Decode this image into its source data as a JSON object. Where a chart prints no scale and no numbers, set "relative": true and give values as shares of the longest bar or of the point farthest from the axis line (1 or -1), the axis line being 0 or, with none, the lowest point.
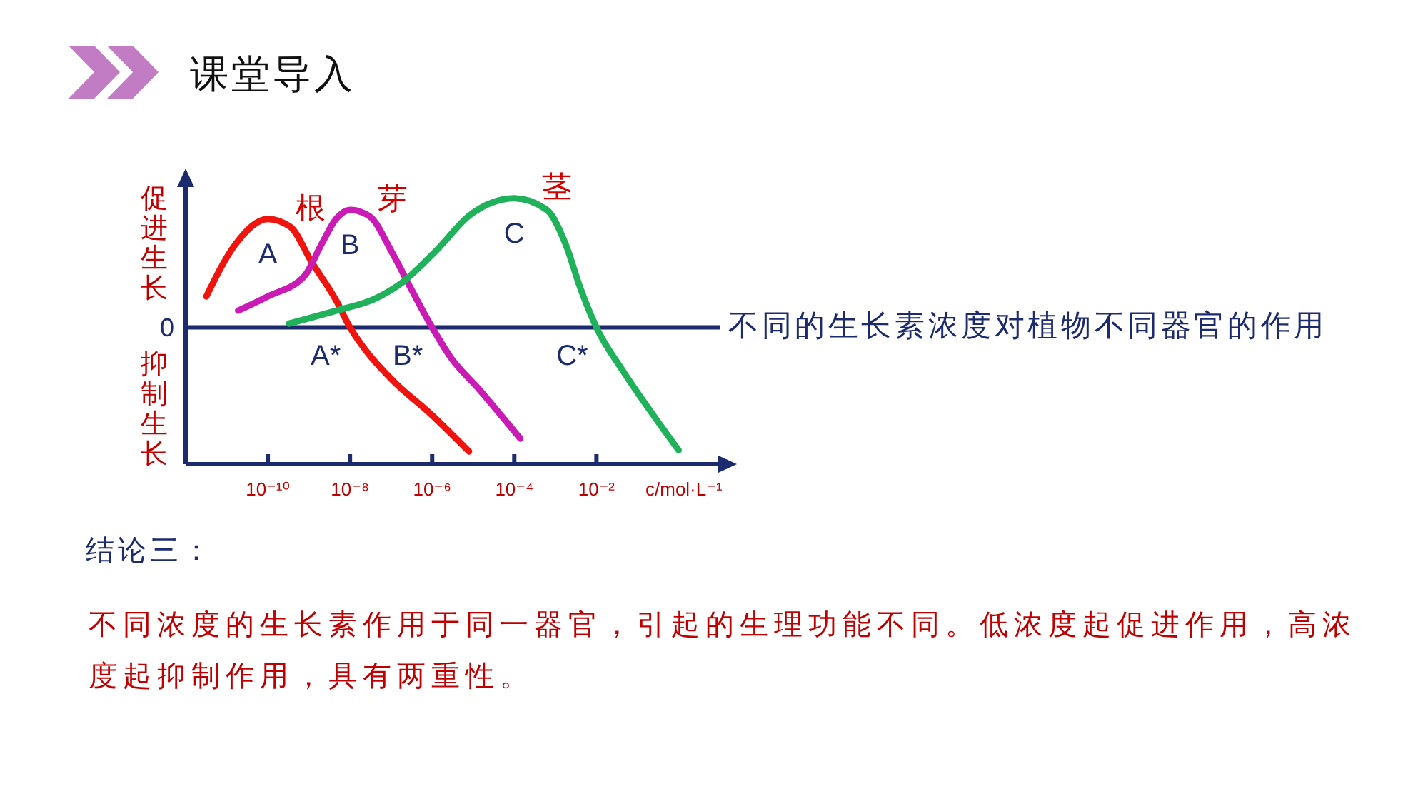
{
  "chart_data": {
    "type": "line",
    "title": "课堂导入",
    "subtitle": "不同的生长素浓度对植物不同器官的作用",
    "xlabel": "c/mol·L⁻¹",
    "log": "x",
    "relative": true,
    "xlim": [
      1e-12,
      10
    ],
    "xticks": [
      {
        "value": 1e-10,
        "label": "10⁻¹⁰"
      },
      {
        "value": 1e-08,
        "label": "10⁻⁸"
      },
      {
        "value": 1e-06,
        "label": "10⁻⁶"
      },
      {
        "value": 0.0001,
        "label": "10⁻⁴"
      },
      {
        "value": 0.01,
        "label": "10⁻²"
      }
    ],
    "ref_lines": [
      {
        "axis": "y",
        "value": 0,
        "label": "0",
        "color": "#1c2a6e"
      }
    ],
    "series": [
      {
        "name": "根",
        "color": "#f0140f",
        "x": [
          3.2e-12,
          1.6e-11,
          1e-10,
          3.5e-10,
          1.2e-09,
          4.6e-09,
          1e-08,
          2.6e-08,
          1.1e-07,
          1e-06,
          7.9e-06
        ],
        "values": [
          0.24,
          0.64,
          0.84,
          0.78,
          0.5,
          0.21,
          0,
          -0.19,
          -0.41,
          -0.68,
          -0.96
        ]
      },
      {
        "name": "芽",
        "color": "#c81cb4",
        "x": [
          1.9e-11,
          1e-10,
          7.9e-10,
          2e-09,
          4.6e-09,
          1e-08,
          3e-08,
          1.1e-07,
          3.3e-07,
          1e-06,
          2.8e-06,
          1.4e-05,
          0.00014
        ],
        "values": [
          0.13,
          0.24,
          0.4,
          0.64,
          0.84,
          0.91,
          0.86,
          0.57,
          0.28,
          0,
          -0.23,
          -0.48,
          -0.86
        ]
      },
      {
        "name": "茎",
        "color": "#20b25a",
        "x": [
          3.3e-10,
          4.6e-09,
          3.9e-08,
          1.9e-07,
          1.3e-06,
          8.3e-06,
          0.0001,
          0.00062,
          0.0018,
          0.004,
          0.01,
          0.045,
          0.22,
          1
        ],
        "values": [
          0.03,
          0.13,
          0.22,
          0.35,
          0.6,
          0.87,
          1,
          0.91,
          0.64,
          0.31,
          0,
          -0.34,
          -0.66,
          -0.95
        ]
      }
    ],
    "annotations": [
      "促进生长",
      "抑制生长",
      {
        "text": "A",
        "x": 1e-10,
        "y": 0.84
      },
      {
        "text": "B",
        "x": 1e-08,
        "y": 0.91
      },
      {
        "text": "C",
        "x": 0.0001,
        "y": 1
      },
      {
        "text": "A*",
        "x": 1e-08,
        "y": 0
      },
      {
        "text": "B*",
        "x": 1e-06,
        "y": 0
      },
      {
        "text": "C*",
        "x": 0.01,
        "y": 0
      },
      "结论三：",
      "不同浓度的生长素作用于同一器官，引起的生理功能不同。低浓度起促进作用，高浓度起抑制作用，具有两重性。"
    ]
  }
}
